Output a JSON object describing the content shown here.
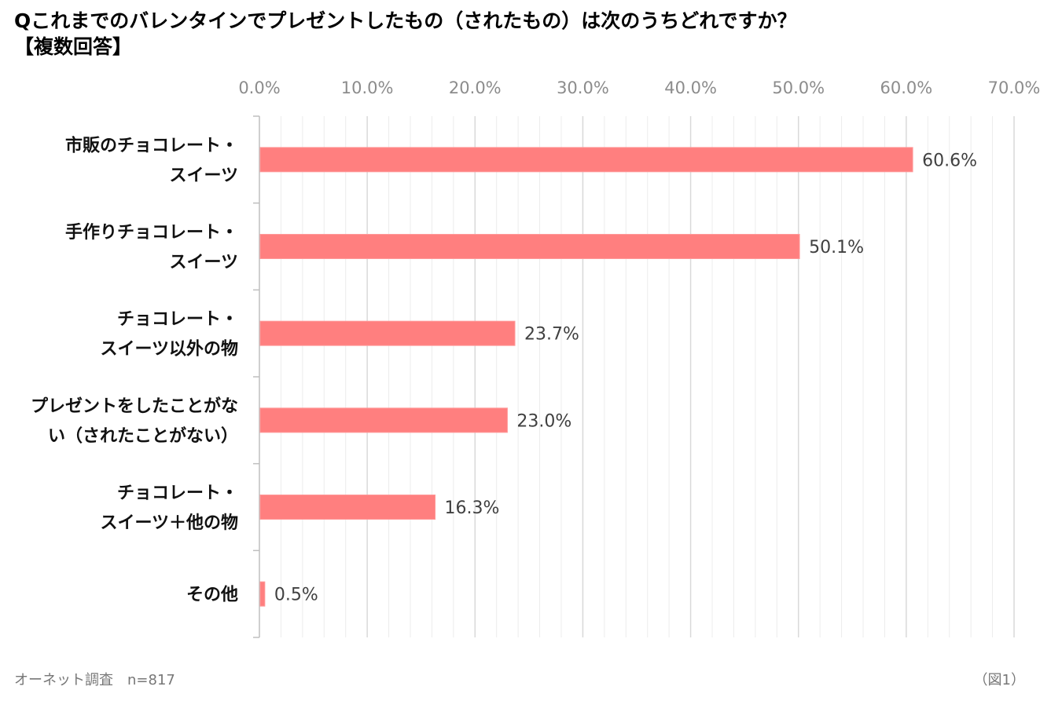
{
  "title": {
    "line1": "Qこれまでのバレンタインでプレゼントしたもの（されたもの）は次のうちどれですか？",
    "line2": "【複数回答】"
  },
  "footer": {
    "source": "オーネット調査　n=817",
    "figure": "（図1）"
  },
  "chart_data": {
    "type": "bar",
    "orientation": "horizontal",
    "title": "Qこれまでのバレンタインでプレゼントしたもの（されたもの）は次のうちどれですか？【複数回答】",
    "categories": [
      [
        "市販のチョコレート・",
        "スイーツ"
      ],
      [
        "手作りチョコレート・",
        "スイーツ"
      ],
      [
        "チョコレート・",
        "スイーツ以外の物"
      ],
      [
        "プレゼントをしたことがな",
        "い（されたことがない）"
      ],
      [
        "チョコレート・",
        "スイーツ＋他の物"
      ],
      [
        "その他"
      ]
    ],
    "values": [
      60.6,
      50.1,
      23.7,
      23.0,
      16.3,
      0.5
    ],
    "value_labels": [
      "60.6%",
      "50.1%",
      "23.7%",
      "23.0%",
      "16.3%",
      "0.5%"
    ],
    "xlim": [
      0,
      70
    ],
    "ticks": [
      0,
      10,
      20,
      30,
      40,
      50,
      60,
      70
    ],
    "tick_labels": [
      "0.0%",
      "10.0%",
      "20.0%",
      "30.0%",
      "40.0%",
      "50.0%",
      "60.0%",
      "70.0%"
    ],
    "axis_position": "top",
    "grid": true,
    "xlabel": "",
    "ylabel": "",
    "bar_color": "#ff7f7f",
    "grid_color": "#d9d9d9"
  }
}
